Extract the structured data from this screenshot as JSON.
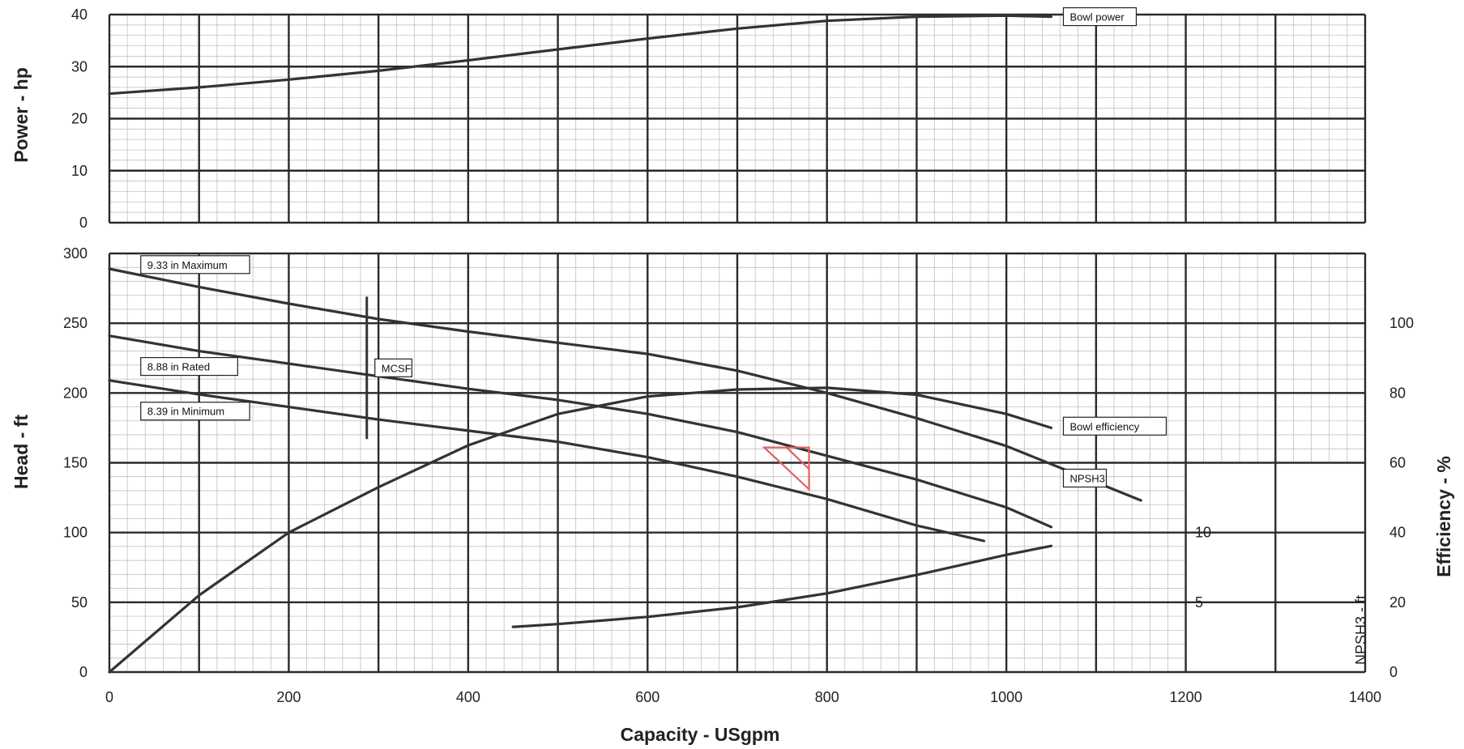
{
  "chart_data": [
    {
      "type": "line",
      "panel": "power",
      "ylabel": "Power - hp",
      "ylim": [
        0,
        40
      ],
      "yticks": [
        "0",
        "10",
        "20",
        "30",
        "40"
      ],
      "xlim": [
        0,
        1400
      ],
      "grid": true,
      "series": [
        {
          "name": "Bowl power",
          "x": [
            0,
            100,
            200,
            300,
            400,
            500,
            600,
            700,
            800,
            900,
            1000,
            1050
          ],
          "y": [
            24.8,
            26.0,
            27.5,
            29.2,
            31.2,
            33.3,
            35.4,
            37.3,
            38.8,
            39.6,
            39.8,
            39.6
          ]
        }
      ]
    },
    {
      "type": "line",
      "panel": "head",
      "xlabel": "Capacity - USgpm",
      "ylabel": "Head - ft",
      "y2label": "Efficiency - %",
      "y3label": "NPSH3 - ft",
      "xlim": [
        0,
        1400
      ],
      "ylim": [
        0,
        300
      ],
      "y2lim": [
        0,
        120
      ],
      "xticks": [
        "0",
        "200",
        "400",
        "600",
        "800",
        "1000",
        "1200",
        "1400"
      ],
      "yticks": [
        "0",
        "50",
        "100",
        "150",
        "200",
        "250",
        "300"
      ],
      "y2ticks": [
        "0",
        "20",
        "40",
        "60",
        "80",
        "100"
      ],
      "y3ticks": [
        "5",
        "10"
      ],
      "grid": true,
      "series": [
        {
          "name": "9.33 in  Maximum",
          "x": [
            0,
            100,
            200,
            300,
            400,
            500,
            600,
            700,
            800,
            900,
            1000,
            1100,
            1150
          ],
          "y": [
            289,
            276,
            264,
            253,
            244,
            236,
            228,
            216,
            200,
            182,
            162,
            136,
            123
          ]
        },
        {
          "name": "8.88 in  Rated",
          "x": [
            0,
            100,
            200,
            300,
            400,
            500,
            600,
            700,
            800,
            900,
            1000,
            1050
          ],
          "y": [
            241,
            230,
            221,
            212,
            203,
            195,
            185,
            172,
            155,
            138,
            118,
            104
          ]
        },
        {
          "name": "8.39 in  Minimum",
          "x": [
            0,
            100,
            200,
            300,
            400,
            500,
            600,
            700,
            800,
            900,
            975
          ],
          "y": [
            209,
            199,
            190,
            181,
            173,
            165,
            154,
            140,
            124,
            105,
            94
          ]
        },
        {
          "name": "Bowl efficiency",
          "axis": "efficiency",
          "x": [
            0,
            100,
            200,
            300,
            400,
            500,
            600,
            700,
            800,
            900,
            1000,
            1050
          ],
          "y": [
            0,
            22,
            40,
            53,
            65,
            74,
            79,
            81,
            81.5,
            79.5,
            74,
            70
          ]
        },
        {
          "name": "NPSH3",
          "axis": "npsh",
          "x": [
            450,
            500,
            600,
            700,
            800,
            900,
            1000,
            1050
          ],
          "y": [
            3.24,
            3.44,
            3.96,
            4.64,
            5.64,
            6.96,
            8.4,
            9.04
          ]
        }
      ],
      "annotations": [
        {
          "text": "MCSF",
          "x": 287,
          "y_from": 167,
          "y_to": 269
        }
      ],
      "marker": {
        "color": "#e06060",
        "x": [
          730,
          780,
          755
        ],
        "y": [
          161,
          131,
          161
        ]
      }
    }
  ]
}
